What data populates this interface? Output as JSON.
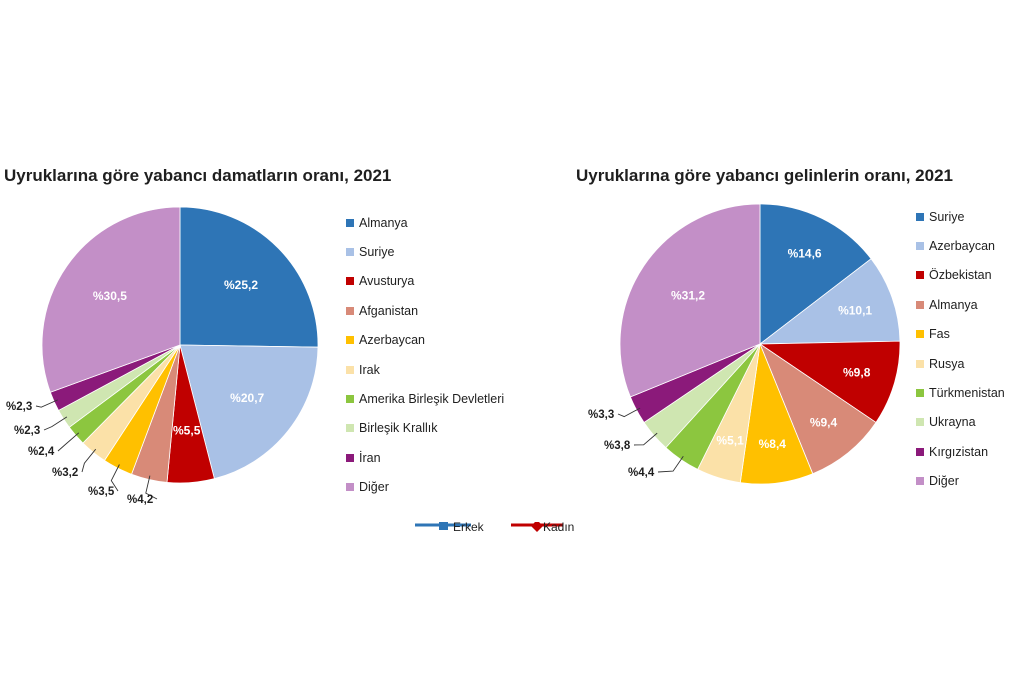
{
  "chart_data": [
    {
      "type": "pie",
      "title": "Uyruklarına göre yabancı damatların oranı, 2021",
      "categories": [
        "Almanya",
        "Suriye",
        "Avusturya",
        "Afganistan",
        "Azerbaycan",
        "Irak",
        "Amerika Birleşik Devletleri",
        "Birleşik Krallık",
        "İran",
        "Diğer"
      ],
      "values": [
        25.2,
        20.7,
        5.5,
        4.2,
        3.5,
        3.2,
        2.4,
        2.3,
        2.3,
        30.5
      ],
      "labels": [
        "%25,2",
        "%20,7",
        "%5,5",
        "%4,2",
        "%3,5",
        "%3,2",
        "%2,4",
        "%2,3",
        "%2,3",
        "%30,5"
      ],
      "colors": [
        "#2E75B6",
        "#A9C1E6",
        "#C00000",
        "#D88A78",
        "#FFC000",
        "#FBE1A8",
        "#8CC63F",
        "#CFE6B1",
        "#8B1A7A",
        "#C38FC7"
      ],
      "legend_position": "right"
    },
    {
      "type": "pie",
      "title": "Uyruklarına göre yabancı gelinlerin oranı, 2021",
      "categories": [
        "Suriye",
        "Azerbaycan",
        "Özbekistan",
        "Almanya",
        "Fas",
        "Rusya",
        "Türkmenistan",
        "Ukrayna",
        "Kırgızistan",
        "Diğer"
      ],
      "values": [
        14.6,
        10.1,
        9.8,
        9.4,
        8.4,
        5.1,
        4.4,
        3.8,
        3.3,
        31.2
      ],
      "labels": [
        "%14,6",
        "%10,1",
        "%9,8",
        "%9,4",
        "%8,4",
        "%5,1",
        "%4,4",
        "%3,8",
        "%3,3",
        "%31,2"
      ],
      "colors": [
        "#2E75B6",
        "#A9C1E6",
        "#C00000",
        "#D88A78",
        "#FFC000",
        "#FBE1A8",
        "#8CC63F",
        "#CFE6B1",
        "#8B1A7A",
        "#C38FC7"
      ],
      "legend_position": "right"
    }
  ],
  "fragment_legend": {
    "items": [
      {
        "label": "Erkek",
        "color": "#2E75B6"
      },
      {
        "label": "Kadın",
        "color": "#C00000"
      }
    ]
  }
}
